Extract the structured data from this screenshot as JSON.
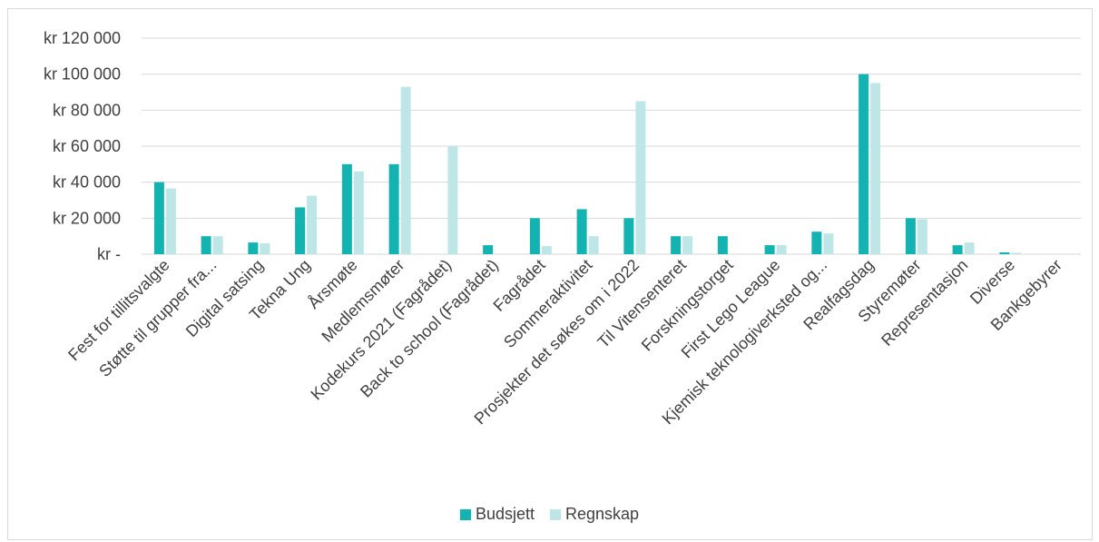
{
  "chart_data": {
    "type": "bar",
    "title": "",
    "xlabel": "",
    "ylabel": "",
    "ylim": [
      0,
      120000
    ],
    "ytick_values": [
      0,
      20000,
      40000,
      60000,
      80000,
      100000,
      120000
    ],
    "ytick_labels": [
      "kr -",
      "kr 20 000",
      "kr 40 000",
      "kr 60 000",
      "kr 80 000",
      "kr 100 000",
      "kr 120 000"
    ],
    "grid": true,
    "legend_position": "bottom",
    "categories": [
      "Fest for tillitsvalgte",
      "Støtte til grupper fra...",
      "Digital satsing",
      "Tekna Ung",
      "Årsmøte",
      "Medlemsmøter",
      "Kodekurs 2021 (Fagrådet)",
      "Back to school (Fagrådet)",
      "Fagrådet",
      "Sommeraktivitet",
      "Prosjekter det søkes om i 2022",
      "Til Vitensenteret",
      "Forskningstorget",
      "First Lego League",
      "Kjemisk teknologiverksted og...",
      "Realfagsdag",
      "Styremøter",
      "Representasjon",
      "Diverse",
      "Bankgebyrer"
    ],
    "series": [
      {
        "name": "Budsjett",
        "color": "#12b3b0",
        "values": [
          40000,
          10000,
          6500,
          26000,
          50000,
          50000,
          0,
          5000,
          20000,
          25000,
          20000,
          10000,
          10000,
          5000,
          12500,
          100000,
          20000,
          5000,
          1000,
          0
        ]
      },
      {
        "name": "Regnskap",
        "color": "#bfe6e6",
        "values": [
          36500,
          10000,
          6000,
          32500,
          46000,
          93000,
          60000,
          0,
          4500,
          10000,
          85000,
          10000,
          0,
          5000,
          11500,
          95000,
          19500,
          6500,
          800,
          0
        ]
      }
    ]
  }
}
